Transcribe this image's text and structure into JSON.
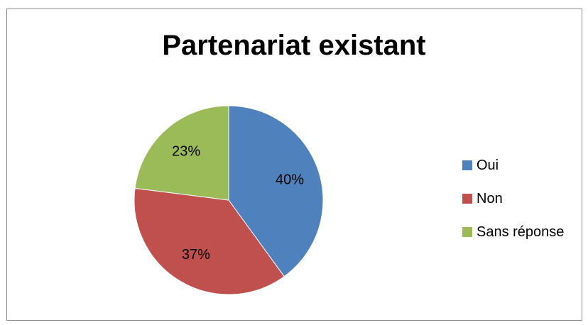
{
  "chart_data": {
    "type": "pie",
    "title": "Partenariat existant",
    "categories": [
      "Oui",
      "Non",
      "Sans réponse"
    ],
    "values": [
      40,
      37,
      23
    ],
    "data_labels": [
      "40%",
      "37%",
      "23%"
    ],
    "colors": [
      "#4F81BD",
      "#C0504D",
      "#9BBB59"
    ],
    "legend_position": "right"
  }
}
